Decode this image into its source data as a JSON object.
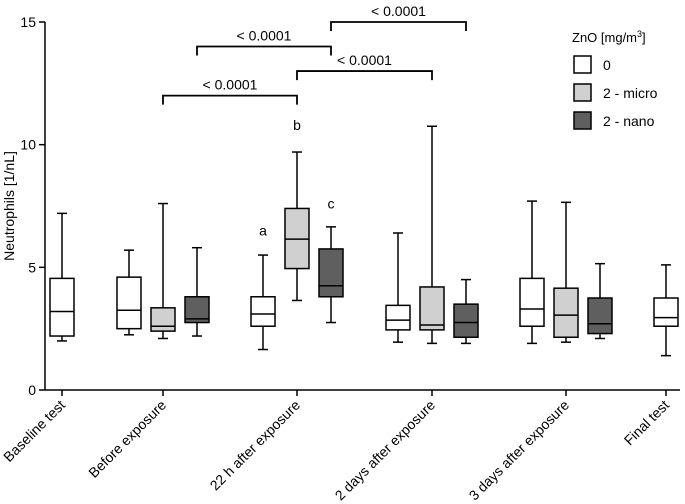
{
  "chart_data": {
    "type": "box",
    "ylabel": "Neutrophils [1/nL]",
    "ylim": [
      0,
      15
    ],
    "yticks": [
      0,
      5,
      10,
      15
    ],
    "legend": {
      "title": "ZnO [mg/m",
      "title_sup": "3",
      "title_close": "]",
      "position": "top-right",
      "entries": [
        {
          "name": "0",
          "color": "#ffffff"
        },
        {
          "name": "2 - micro",
          "color": "#d0d0d0"
        },
        {
          "name": "2 - nano",
          "color": "#5f5f5f"
        }
      ]
    },
    "categories": [
      "Baseline test",
      "Before exposure",
      "22 h after exposure",
      "2 days after exposure",
      "3 days after exposure",
      "Final test"
    ],
    "boxes": [
      {
        "category": 0,
        "group": "0",
        "min": 2.0,
        "q1": 2.2,
        "median": 3.2,
        "q3": 4.55,
        "max": 7.2
      },
      {
        "category": 1,
        "group": "0",
        "min": 2.25,
        "q1": 2.5,
        "median": 3.25,
        "q3": 4.6,
        "max": 5.7
      },
      {
        "category": 1,
        "group": "2 - micro",
        "min": 2.1,
        "q1": 2.4,
        "median": 2.6,
        "q3": 3.35,
        "max": 7.6
      },
      {
        "category": 1,
        "group": "2 - nano",
        "min": 2.2,
        "q1": 2.75,
        "median": 2.9,
        "q3": 3.8,
        "max": 5.8
      },
      {
        "category": 2,
        "group": "0",
        "min": 1.65,
        "q1": 2.6,
        "median": 3.1,
        "q3": 3.8,
        "max": 5.5
      },
      {
        "category": 2,
        "group": "2 - micro",
        "min": 3.65,
        "q1": 4.95,
        "median": 6.15,
        "q3": 7.4,
        "max": 9.7
      },
      {
        "category": 2,
        "group": "2 - nano",
        "min": 2.75,
        "q1": 3.8,
        "median": 4.25,
        "q3": 5.75,
        "max": 6.65
      },
      {
        "category": 3,
        "group": "0",
        "min": 1.95,
        "q1": 2.45,
        "median": 2.85,
        "q3": 3.45,
        "max": 6.4
      },
      {
        "category": 3,
        "group": "2 - micro",
        "min": 1.9,
        "q1": 2.45,
        "median": 2.65,
        "q3": 4.2,
        "max": 10.75
      },
      {
        "category": 3,
        "group": "2 - nano",
        "min": 1.9,
        "q1": 2.15,
        "median": 2.75,
        "q3": 3.5,
        "max": 4.5
      },
      {
        "category": 4,
        "group": "0",
        "min": 1.9,
        "q1": 2.6,
        "median": 3.3,
        "q3": 4.55,
        "max": 7.7
      },
      {
        "category": 4,
        "group": "2 - micro",
        "min": 1.95,
        "q1": 2.15,
        "median": 3.05,
        "q3": 4.15,
        "max": 7.65
      },
      {
        "category": 4,
        "group": "2 - nano",
        "min": 2.1,
        "q1": 2.3,
        "median": 2.7,
        "q3": 3.75,
        "max": 5.15
      },
      {
        "category": 5,
        "group": "0",
        "min": 1.4,
        "q1": 2.6,
        "median": 2.95,
        "q3": 3.75,
        "max": 5.1
      }
    ],
    "annotations": [
      {
        "text": "a",
        "category": 2,
        "group": "0",
        "y": 6.3
      },
      {
        "text": "b",
        "category": 2,
        "group": "2 - micro",
        "y": 10.6
      },
      {
        "text": "c",
        "category": 2,
        "group": "2 - nano",
        "y": 7.4
      }
    ],
    "significance": [
      {
        "label": "< 0.0001",
        "from": {
          "category": 1,
          "group": "2 - micro"
        },
        "to": {
          "category": 2,
          "group": "2 - micro"
        },
        "y": 12.0
      },
      {
        "label": "< 0.0001",
        "from": {
          "category": 1,
          "group": "2 - nano"
        },
        "to": {
          "category": 2,
          "group": "2 - nano"
        },
        "y": 14.0
      },
      {
        "label": "< 0.0001",
        "from": {
          "category": 2,
          "group": "2 - micro"
        },
        "to": {
          "category": 3,
          "group": "2 - micro"
        },
        "y": 13.0
      },
      {
        "label": "< 0.0001",
        "from": {
          "category": 2,
          "group": "2 - nano"
        },
        "to": {
          "category": 3,
          "group": "2 - nano"
        },
        "y": 15.0
      }
    ]
  }
}
